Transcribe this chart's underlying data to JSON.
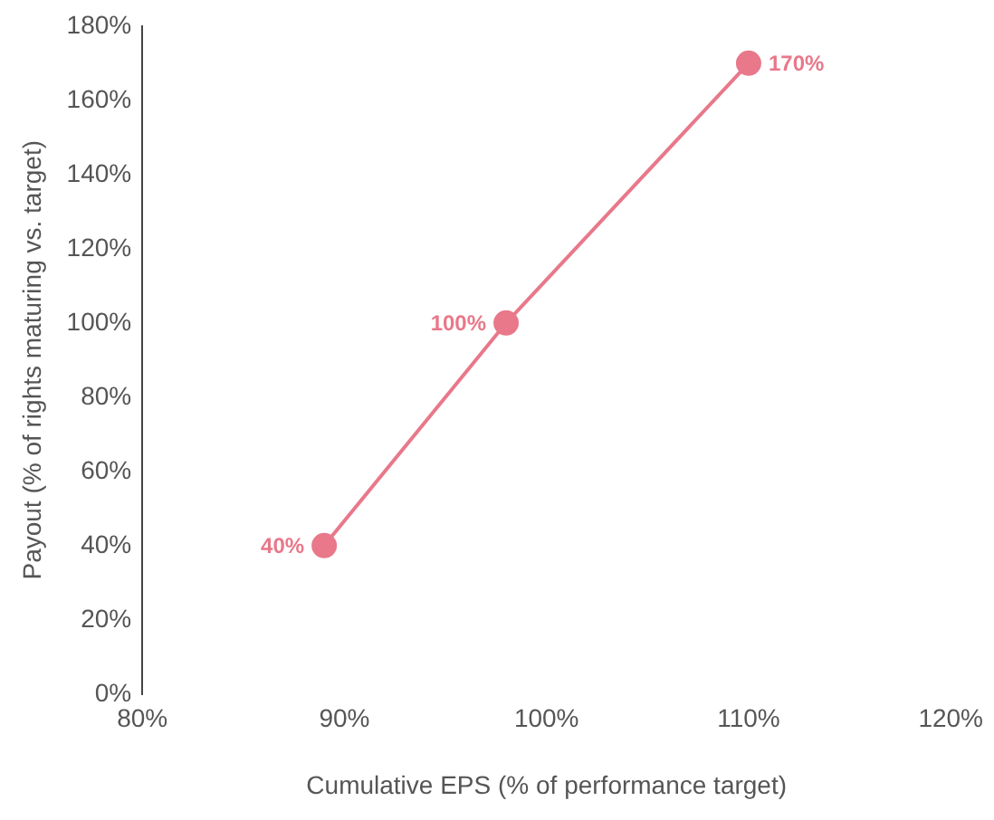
{
  "chart_data": {
    "type": "line",
    "xlabel": "Cumulative EPS (% of performance target)",
    "ylabel": "Payout (% of rights maturing vs. target)",
    "x": [
      89,
      98,
      110
    ],
    "series": [
      {
        "color": "#e8788a",
        "values": [
          40,
          100,
          170
        ],
        "value_labels": [
          "40%",
          "100%",
          "170%"
        ]
      }
    ],
    "xlim": [
      80,
      120
    ],
    "xticks": [
      {
        "value": 80,
        "label": "80%"
      },
      {
        "value": 90,
        "label": "90%"
      },
      {
        "value": 100,
        "label": "100%"
      },
      {
        "value": 110,
        "label": "110%"
      },
      {
        "value": 120,
        "label": "120%"
      }
    ],
    "ylim": [
      0,
      180
    ],
    "yticks": [
      {
        "value": 0,
        "label": "0%"
      },
      {
        "value": 20,
        "label": "20%"
      },
      {
        "value": 40,
        "label": "40%"
      },
      {
        "value": 60,
        "label": "60%"
      },
      {
        "value": 80,
        "label": "80%"
      },
      {
        "value": 100,
        "label": "100%"
      },
      {
        "value": 120,
        "label": "120%"
      },
      {
        "value": 140,
        "label": "140%"
      },
      {
        "value": 160,
        "label": "160%"
      },
      {
        "value": 180,
        "label": "180%"
      }
    ],
    "grid": false,
    "legend": false,
    "marker": "circle",
    "line_style": "solid"
  }
}
